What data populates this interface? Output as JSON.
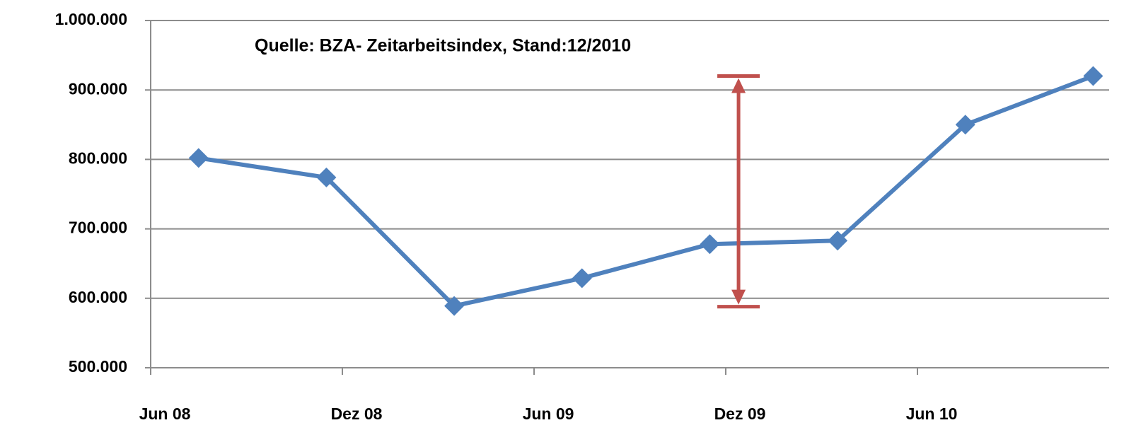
{
  "chart_data": {
    "type": "line",
    "title": "Quelle: BZA- Zeitarbeitsindex, Stand:12/2010",
    "x": [
      1.5,
      5.5,
      9.5,
      13.5,
      17.5,
      21.5,
      25.5,
      29.5
    ],
    "series": [
      {
        "name": null,
        "color": "#4f81bd",
        "values": [
          802000,
          774000,
          589000,
          629000,
          678000,
          683000,
          850000,
          920000
        ]
      }
    ],
    "xlim": [
      0,
      30
    ],
    "xticks": [
      {
        "value": 0,
        "label": "Jun 08"
      },
      {
        "value": 6,
        "label": "Dez 08"
      },
      {
        "value": 12,
        "label": "Jun 09"
      },
      {
        "value": 18,
        "label": "Dez 09"
      },
      {
        "value": 24,
        "label": "Jun 10"
      }
    ],
    "ylim": [
      500000,
      1000000
    ],
    "yticks": [
      {
        "value": 500000,
        "label": "500.000"
      },
      {
        "value": 600000,
        "label": "600.000"
      },
      {
        "value": 700000,
        "label": "700.000"
      },
      {
        "value": 800000,
        "label": "800.000"
      },
      {
        "value": 900000,
        "label": "900.000"
      },
      {
        "value": 1000000,
        "label": "1.000.000"
      }
    ],
    "grid": true,
    "arrow": {
      "x": 18.4,
      "from": 588000,
      "to": 920000,
      "color": "#c0504d"
    }
  }
}
